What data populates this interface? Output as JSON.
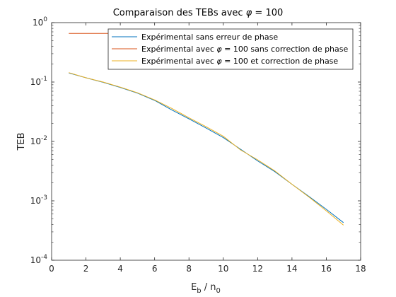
{
  "chart_data": {
    "type": "line",
    "title": {
      "main": "Comparaison des TEBs avec",
      "phi": "φ",
      "rest": " = 100"
    },
    "xlabel": {
      "base_e": "E",
      "sub_b": "b",
      "slash": " / n",
      "sub_0": "0"
    },
    "ylabel": "TEB",
    "xlim": [
      0,
      18
    ],
    "ylim": [
      0.0001,
      1
    ],
    "yscale": "log",
    "xticks": [
      "0",
      "2",
      "4",
      "6",
      "8",
      "10",
      "12",
      "14",
      "16",
      "18"
    ],
    "yticks": [
      {
        "base": "10",
        "exp": "0",
        "value": 1
      },
      {
        "base": "10",
        "exp": "-1",
        "value": 0.1
      },
      {
        "base": "10",
        "exp": "-2",
        "value": 0.01
      },
      {
        "base": "10",
        "exp": "-3",
        "value": 0.001
      },
      {
        "base": "10",
        "exp": "-4",
        "value": 0.0001
      }
    ],
    "grid": false,
    "legend_position": "top-right",
    "legend": [
      {
        "pre": "Expérimental sans erreur de phase",
        "phi": "",
        "post": ""
      },
      {
        "pre": "Expérimental avec ",
        "phi": "φ",
        "post": " = 100 sans correction de phase"
      },
      {
        "pre": "Expérimental avec ",
        "phi": "φ",
        "post": " = 100 et correction de phase"
      }
    ],
    "series": [
      {
        "color": "#0072BD",
        "x": [
          1,
          2,
          3,
          4,
          5,
          6,
          7,
          8,
          9,
          10,
          11,
          12,
          13,
          14,
          15,
          16,
          17
        ],
        "y": [
          0.142,
          0.118,
          0.099,
          0.081,
          0.065,
          0.049,
          0.034,
          0.024,
          0.0168,
          0.0116,
          0.0074,
          0.0047,
          0.0031,
          0.0019,
          0.00118,
          0.00072,
          0.00043
        ]
      },
      {
        "color": "#D95319",
        "x": [
          1,
          2,
          3,
          4,
          5,
          6,
          7,
          8,
          9,
          10,
          11,
          12,
          13,
          14,
          15,
          16,
          17
        ],
        "y": [
          0.66,
          0.66,
          0.66,
          0.66,
          0.66,
          0.66,
          0.66,
          0.66,
          0.66,
          0.66,
          0.66,
          0.66,
          0.66,
          0.66,
          0.66,
          0.66,
          0.66
        ]
      },
      {
        "color": "#EDB120",
        "x": [
          1,
          2,
          3,
          4,
          5,
          6,
          7,
          8,
          9,
          10,
          11,
          12,
          13,
          14,
          15,
          16,
          17
        ],
        "y": [
          0.144,
          0.118,
          0.1,
          0.082,
          0.066,
          0.05,
          0.036,
          0.025,
          0.0177,
          0.0122,
          0.0072,
          0.0049,
          0.0032,
          0.0019,
          0.00115,
          0.00068,
          0.00039
        ]
      }
    ]
  }
}
